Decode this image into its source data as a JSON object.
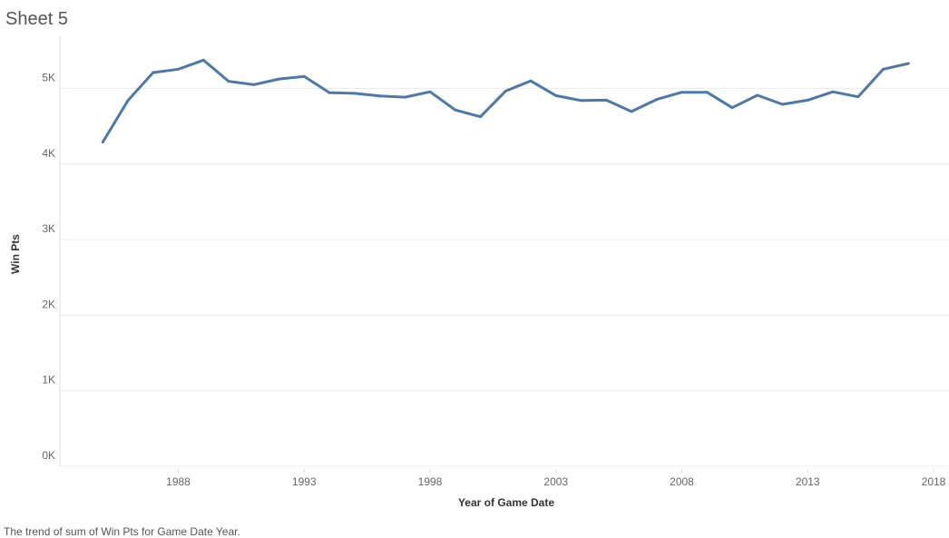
{
  "sheet": {
    "title": "Sheet 5"
  },
  "caption": "The trend of sum of Win Pts for Game Date Year.",
  "colors": {
    "line": "#4e79a7",
    "grid": "#ececec",
    "axis": "#dddddd"
  },
  "chart_data": {
    "type": "line",
    "title": "",
    "xlabel": "Year of Game Date",
    "ylabel": "Win Pts",
    "xlim": [
      1983.5,
      2018.5
    ],
    "ylim": [
      0,
      5600
    ],
    "x_ticks": [
      1988,
      1993,
      1998,
      2003,
      2008,
      2013,
      2018
    ],
    "x_tick_labels": [
      "1988",
      "1993",
      "1998",
      "2003",
      "2008",
      "2013",
      "2018"
    ],
    "y_ticks": [
      0,
      1000,
      2000,
      3000,
      4000,
      5000
    ],
    "y_tick_labels": [
      "0K",
      "1K",
      "2K",
      "3K",
      "4K",
      "5K"
    ],
    "grid": true,
    "series": [
      {
        "x": [
          1985,
          1986,
          1987,
          1988,
          1989,
          1990,
          1991,
          1992,
          1993,
          1994,
          1995,
          1996,
          1997,
          1998,
          1999,
          2000,
          2001,
          2002,
          2003,
          2004,
          2005,
          2006,
          2007,
          2008,
          2009,
          2010,
          2011,
          2012,
          2013,
          2014,
          2015,
          2016,
          2017
        ],
        "values": [
          4290,
          4840,
          5210,
          5255,
          5375,
          5095,
          5050,
          5125,
          5160,
          4945,
          4935,
          4900,
          4885,
          4955,
          4715,
          4625,
          4965,
          5100,
          4905,
          4840,
          4845,
          4695,
          4855,
          4950,
          4950,
          4745,
          4910,
          4790,
          4845,
          4955,
          4890,
          5255,
          5330
        ]
      }
    ]
  }
}
